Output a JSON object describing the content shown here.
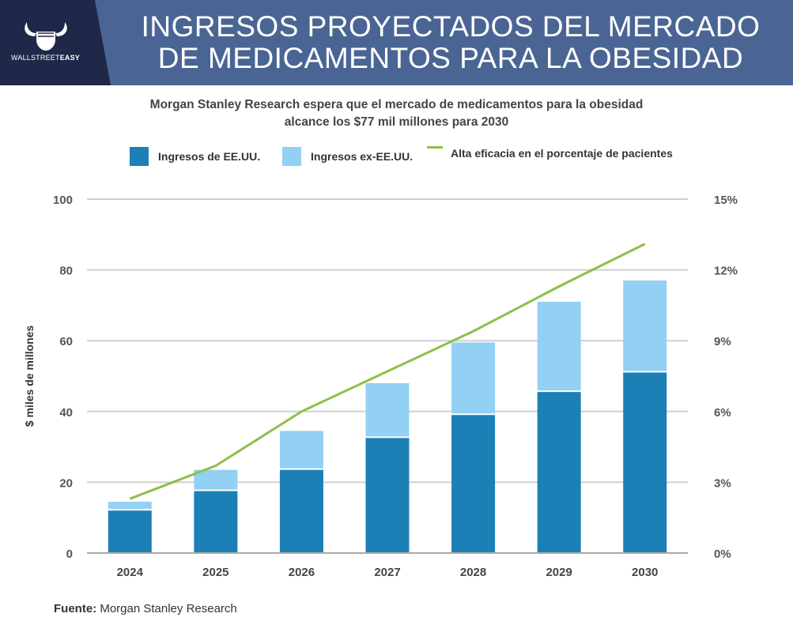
{
  "header": {
    "logo_text_light": "WALLSTREET",
    "logo_text_bold": "EASY",
    "title_line1": "INGRESOS PROYECTADOS DEL MERCADO",
    "title_line2": "DE MEDICAMENTOS PARA LA OBESIDAD"
  },
  "subtitle_line1": "Morgan Stanley Research espera que el mercado de medicamentos para la obesidad",
  "subtitle_line2": "alcance los $77 mil millones para 2030",
  "source_label": "Fuente:",
  "source_value": "Morgan Stanley Research",
  "colors": {
    "us": "#1c7fb6",
    "ex_us": "#93d0f3",
    "line": "#8dc04a",
    "grid": "#d0d0d0",
    "header": "#4a6594",
    "logo_panel": "#1f2849"
  },
  "chart_data": {
    "type": "bar",
    "stacked": true,
    "categories": [
      "2024",
      "2025",
      "2026",
      "2027",
      "2028",
      "2029",
      "2030"
    ],
    "series": [
      {
        "name": "Ingresos de EE.UU.",
        "axis": "left",
        "values": [
          12,
          17.5,
          23.5,
          32.5,
          39,
          45.5,
          51
        ]
      },
      {
        "name": "Ingresos ex-EE.UU.",
        "axis": "left",
        "values": [
          2.5,
          6,
          11,
          15.5,
          20.5,
          25.5,
          26
        ]
      },
      {
        "name": "Alta eficacia en el porcentaje de pacientes",
        "type": "line",
        "axis": "right",
        "values": [
          2.3,
          3.7,
          6.0,
          7.7,
          9.4,
          11.3,
          13.1
        ]
      }
    ],
    "ylabel": "$ miles de millones",
    "ylim": [
      0,
      100
    ],
    "yticks": [
      "0",
      "20",
      "40",
      "60",
      "80",
      "100"
    ],
    "y2lim": [
      0,
      15
    ],
    "y2ticks": [
      "0%",
      "3%",
      "6%",
      "9%",
      "12%",
      "15%"
    ],
    "grid": true,
    "legend_placement": "top"
  }
}
